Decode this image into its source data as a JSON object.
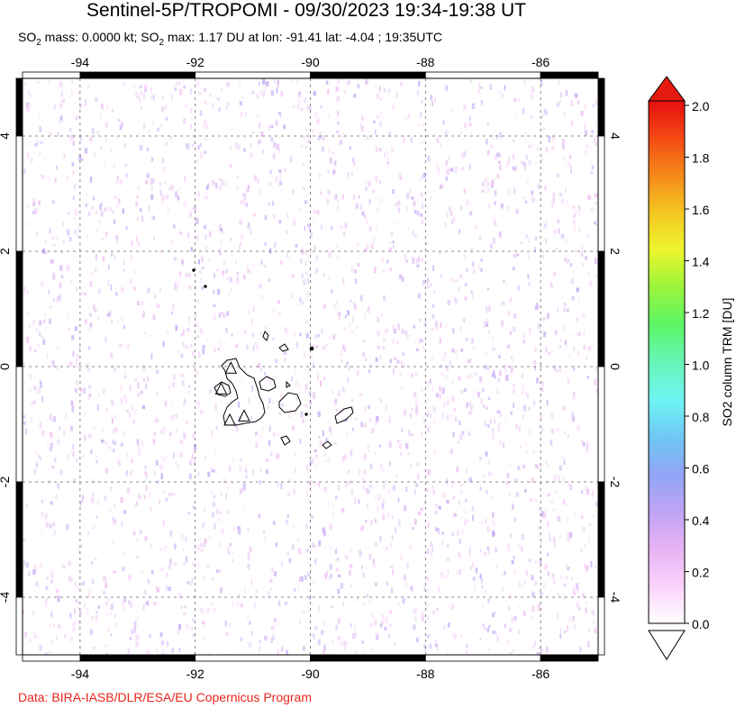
{
  "title": "Sentinel-5P/TROPOMI - 09/30/2023 19:34-19:38 UT",
  "subtitle": {
    "p1": "SO",
    "sub1": "2",
    "p2": " mass: 0.0000 kt; SO",
    "sub2": "2",
    "p3": " max: 1.17 DU at lon: -91.41 lat: -4.04 ; 19:35UTC"
  },
  "credit": "Data: BIRA-IASB/DLR/ESA/EU Copernicus Program",
  "map": {
    "lon_range": [
      -95,
      -85
    ],
    "lat_range": [
      -5,
      5
    ],
    "lon_ticks": [
      -94,
      -92,
      -90,
      -88,
      -86
    ],
    "lat_ticks": [
      4,
      2,
      0,
      -2,
      -4
    ],
    "lon_tick_labels": [
      "-94",
      "-92",
      "-90",
      "-88",
      "-86"
    ],
    "lat_tick_labels": [
      "4",
      "2",
      "0",
      "-2",
      "-4"
    ],
    "grid": true,
    "colors": {
      "background_noise": "#f4d2f4",
      "coast": "#000000",
      "grid": "#666666"
    },
    "volcano_markers": [
      {
        "name": "volcano-marker-1",
        "lon": -91.38,
        "lat": -0.02
      },
      {
        "name": "volcano-marker-2",
        "lon": -91.55,
        "lat": -0.38
      },
      {
        "name": "volcano-marker-3",
        "lon": -91.15,
        "lat": -0.85
      },
      {
        "name": "volcano-marker-4",
        "lon": -91.4,
        "lat": -0.92
      }
    ]
  },
  "colorbar": {
    "label": "SO2 column TRM [DU]",
    "min": 0.0,
    "max": 2.0,
    "tick_labels": [
      "2.0",
      "1.8",
      "1.6",
      "1.4",
      "1.2",
      "1.0",
      "0.8",
      "0.6",
      "0.4",
      "0.2",
      "0.0"
    ],
    "colors_bottom_to_top": [
      "#ffffff",
      "#fbd2fa",
      "#e7b2f5",
      "#bfa3f5",
      "#8fa5f5",
      "#6fc8f5",
      "#6ef5f2",
      "#68f5b8",
      "#5cf566",
      "#9af53c",
      "#eef52e",
      "#f5c622",
      "#f58a1a",
      "#f54a14",
      "#e60f0f"
    ],
    "top_extension_color": "#e61a0f",
    "bottom_extension_color": "#ffffff"
  }
}
